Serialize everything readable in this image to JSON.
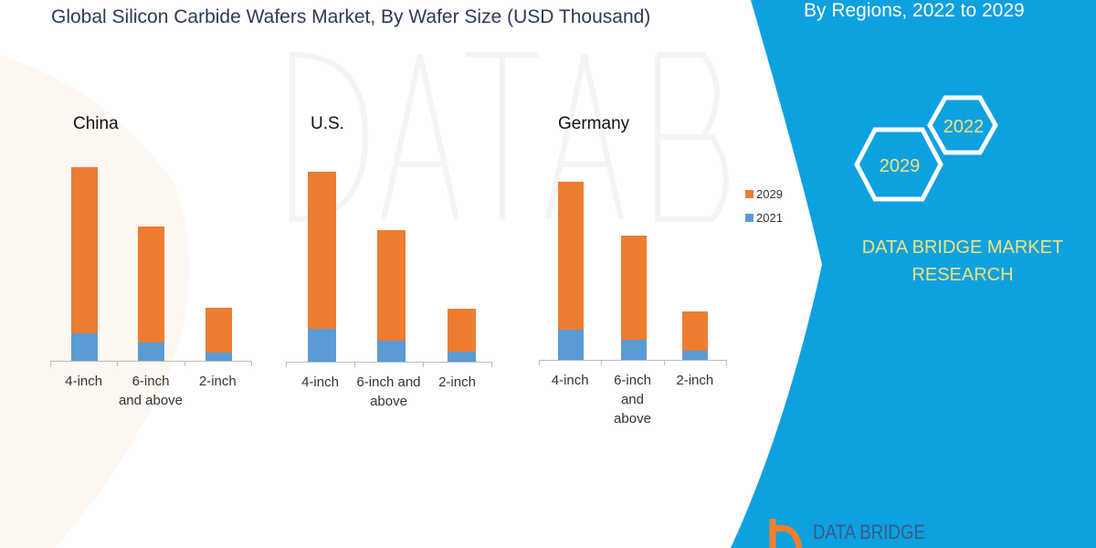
{
  "title": "Global Silicon Carbide Wafers Market, By Wafer Size (USD Thousand)",
  "subtitle": "By Regions, 2022 to 2029",
  "brand": {
    "line1": "DATA BRIDGE MARKET",
    "line2": "RESEARCH",
    "logo_text": "DATA BRIDGE",
    "watermark": "DATA BRIDGE"
  },
  "hexagons": [
    "2022",
    "2029"
  ],
  "colors": {
    "series_2029": "#ed7d31",
    "series_2021": "#5b9bd5",
    "panel": "#0ea1e0",
    "brand_text": "#f2e37a"
  },
  "chart_data": {
    "type": "bar",
    "stacked": true,
    "title": "Global Silicon Carbide Wafers Market, By Wafer Size (USD Thousand)",
    "value_axis_shown": false,
    "legend": {
      "placement": "right",
      "entries": [
        "2029",
        "2021"
      ]
    },
    "panels": [
      {
        "region": "China",
        "categories": [
          "4-inch",
          "6-inch and above",
          "2-inch"
        ],
        "category_lines": [
          [
            "4-inch"
          ],
          [
            "6-inch",
            "and above"
          ],
          [
            "2-inch"
          ]
        ],
        "series": [
          {
            "name": "2021",
            "values": [
              30,
              20,
              9
            ]
          },
          {
            "name": "2029",
            "values": [
              182,
              127,
              49
            ]
          }
        ]
      },
      {
        "region": "U.S.",
        "categories": [
          "4-inch",
          "6-inch and above",
          "2-inch"
        ],
        "category_lines": [
          [
            "4-inch"
          ],
          [
            "6-inch and",
            "above"
          ],
          [
            "2-inch"
          ]
        ],
        "series": [
          {
            "name": "2021",
            "values": [
              36,
              23,
              11
            ]
          },
          {
            "name": "2029",
            "values": [
              172,
              121,
              47
            ]
          }
        ]
      },
      {
        "region": "Germany",
        "categories": [
          "4-inch",
          "6-inch and above",
          "2-inch"
        ],
        "category_lines": [
          [
            "4-inch"
          ],
          [
            "6-inch",
            "and",
            "above"
          ],
          [
            "2-inch"
          ]
        ],
        "series": [
          {
            "name": "2021",
            "values": [
              33,
              22,
              10
            ]
          },
          {
            "name": "2029",
            "values": [
              162,
              114,
              43
            ]
          }
        ]
      }
    ]
  }
}
